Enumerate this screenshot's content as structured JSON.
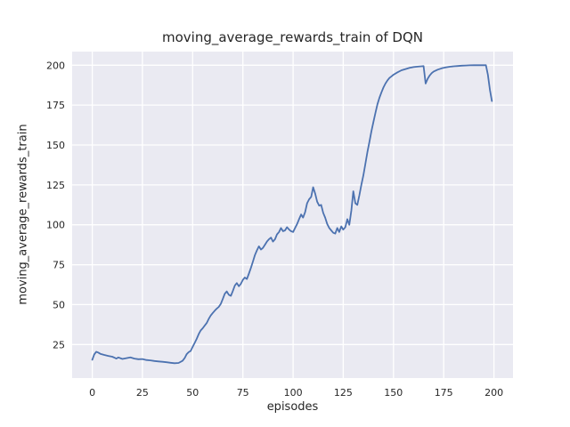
{
  "chart_data": {
    "type": "line",
    "title": "moving_average_rewards_train of DQN",
    "xlabel": "episodes",
    "ylabel": "moving_average_rewards_train",
    "xlim": [
      -10,
      209.5
    ],
    "ylim": [
      4,
      208.5
    ],
    "xticks": [
      0,
      25,
      50,
      75,
      100,
      125,
      150,
      175,
      200
    ],
    "yticks": [
      25,
      50,
      75,
      100,
      125,
      150,
      175,
      200
    ],
    "grid": true,
    "legend": false,
    "style": {
      "line_color": "#4c72b0",
      "plot_bg": "#eaeaf2",
      "grid_color": "#ffffff",
      "figure_bg": "#ffffff",
      "text_color": "#262626"
    },
    "series": [
      {
        "name": "moving_average_rewards_train",
        "points": [
          [
            0,
            15.5
          ],
          [
            1,
            18.8
          ],
          [
            2,
            20.5
          ],
          [
            3,
            20.0
          ],
          [
            4,
            19.2
          ],
          [
            6,
            18.5
          ],
          [
            8,
            17.9
          ],
          [
            10,
            17.4
          ],
          [
            12,
            16.2
          ],
          [
            13,
            16.9
          ],
          [
            15,
            16.0
          ],
          [
            17,
            16.5
          ],
          [
            19,
            16.9
          ],
          [
            21,
            16.2
          ],
          [
            23,
            15.8
          ],
          [
            25,
            15.9
          ],
          [
            27,
            15.3
          ],
          [
            29,
            15.1
          ],
          [
            31,
            14.7
          ],
          [
            33,
            14.4
          ],
          [
            35,
            14.2
          ],
          [
            37,
            13.9
          ],
          [
            39,
            13.6
          ],
          [
            41,
            13.3
          ],
          [
            43,
            13.5
          ],
          [
            45,
            14.8
          ],
          [
            46,
            16.5
          ],
          [
            47,
            18.9
          ],
          [
            48,
            20.2
          ],
          [
            49,
            21.0
          ],
          [
            50,
            23.5
          ],
          [
            51,
            26.0
          ],
          [
            52,
            28.5
          ],
          [
            53,
            31.5
          ],
          [
            54,
            33.8
          ],
          [
            55,
            35.2
          ],
          [
            56,
            36.8
          ],
          [
            57,
            38.5
          ],
          [
            58,
            41.0
          ],
          [
            59,
            43.2
          ],
          [
            60,
            44.8
          ],
          [
            61,
            46.2
          ],
          [
            62,
            47.5
          ],
          [
            63,
            48.6
          ],
          [
            64,
            50.5
          ],
          [
            65,
            53.5
          ],
          [
            66,
            56.8
          ],
          [
            67,
            58.3
          ],
          [
            68,
            56.2
          ],
          [
            69,
            55.5
          ],
          [
            70,
            58.5
          ],
          [
            71,
            62.0
          ],
          [
            72,
            63.5
          ],
          [
            73,
            61.5
          ],
          [
            74,
            63.0
          ],
          [
            75,
            65.5
          ],
          [
            76,
            67.0
          ],
          [
            77,
            66.0
          ],
          [
            78,
            69.5
          ],
          [
            79,
            73.0
          ],
          [
            80,
            77.0
          ],
          [
            81,
            81.0
          ],
          [
            82,
            84.0
          ],
          [
            83,
            86.5
          ],
          [
            84,
            84.5
          ],
          [
            85,
            85.5
          ],
          [
            86,
            87.5
          ],
          [
            87,
            89.5
          ],
          [
            88,
            91.0
          ],
          [
            89,
            92.0
          ],
          [
            90,
            89.5
          ],
          [
            91,
            91.0
          ],
          [
            92,
            94.0
          ],
          [
            93,
            95.5
          ],
          [
            94,
            98.0
          ],
          [
            95,
            96.0
          ],
          [
            96,
            96.5
          ],
          [
            97,
            98.5
          ],
          [
            98,
            97.0
          ],
          [
            99,
            96.0
          ],
          [
            100,
            95.5
          ],
          [
            101,
            98.0
          ],
          [
            102,
            100.5
          ],
          [
            103,
            103.5
          ],
          [
            104,
            106.5
          ],
          [
            105,
            104.5
          ],
          [
            106,
            108.0
          ],
          [
            107,
            113.5
          ],
          [
            108,
            116.0
          ],
          [
            109,
            117.5
          ],
          [
            110,
            123.5
          ],
          [
            111,
            119.5
          ],
          [
            112,
            114.5
          ],
          [
            113,
            112.0
          ],
          [
            114,
            112.5
          ],
          [
            115,
            107.5
          ],
          [
            116,
            104.5
          ],
          [
            117,
            100.5
          ],
          [
            118,
            98.0
          ],
          [
            119,
            96.5
          ],
          [
            120,
            95.0
          ],
          [
            121,
            94.5
          ],
          [
            122,
            98.0
          ],
          [
            123,
            95.5
          ],
          [
            124,
            99.0
          ],
          [
            125,
            97.0
          ],
          [
            126,
            98.5
          ],
          [
            127,
            103.5
          ],
          [
            128,
            100.0
          ],
          [
            129,
            109.0
          ],
          [
            130,
            121.0
          ],
          [
            131,
            113.5
          ],
          [
            132,
            112.5
          ],
          [
            133,
            118.5
          ],
          [
            134,
            125.0
          ],
          [
            135,
            131.0
          ],
          [
            136,
            138.0
          ],
          [
            137,
            145.5
          ],
          [
            138,
            152.0
          ],
          [
            139,
            158.5
          ],
          [
            140,
            164.5
          ],
          [
            141,
            170.0
          ],
          [
            142,
            175.5
          ],
          [
            143,
            179.5
          ],
          [
            144,
            183.0
          ],
          [
            145,
            186.0
          ],
          [
            146,
            188.5
          ],
          [
            147,
            190.5
          ],
          [
            148,
            192.0
          ],
          [
            149,
            193.0
          ],
          [
            150,
            194.0
          ],
          [
            152,
            195.5
          ],
          [
            154,
            196.8
          ],
          [
            156,
            197.6
          ],
          [
            158,
            198.3
          ],
          [
            160,
            198.8
          ],
          [
            162,
            199.1
          ],
          [
            164,
            199.3
          ],
          [
            165,
            199.4
          ],
          [
            166,
            188.5
          ],
          [
            167,
            191.5
          ],
          [
            168,
            193.5
          ],
          [
            169,
            195.0
          ],
          [
            170,
            196.0
          ],
          [
            172,
            197.2
          ],
          [
            174,
            198.0
          ],
          [
            176,
            198.6
          ],
          [
            178,
            199.0
          ],
          [
            180,
            199.3
          ],
          [
            182,
            199.5
          ],
          [
            184,
            199.7
          ],
          [
            186,
            199.8
          ],
          [
            188,
            199.9
          ],
          [
            190,
            200.0
          ],
          [
            192,
            200.0
          ],
          [
            194,
            200.0
          ],
          [
            196,
            200.0
          ],
          [
            197,
            194.0
          ],
          [
            198,
            184.5
          ],
          [
            199,
            177.5
          ]
        ]
      }
    ]
  }
}
